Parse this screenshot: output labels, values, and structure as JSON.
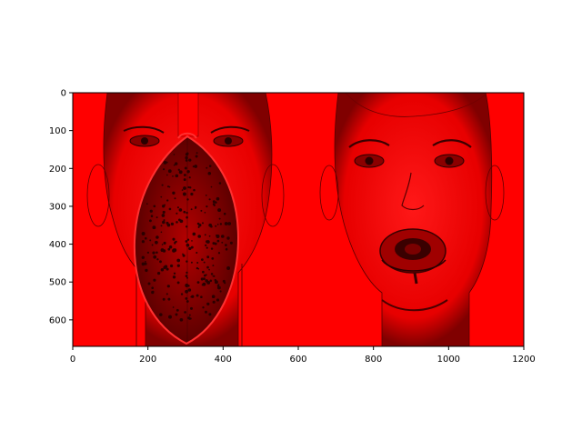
{
  "chart_data": {
    "type": "image",
    "title": "",
    "xlabel": "",
    "ylabel": "",
    "xlim": [
      0,
      1200
    ],
    "ylim": [
      670,
      0
    ],
    "x_ticks": [
      0,
      200,
      400,
      600,
      800,
      1000,
      1200
    ],
    "y_ticks": [
      0,
      100,
      200,
      300,
      400,
      500,
      600
    ],
    "image_content": "red-tinted photo of two faces: left face with dragon fruit half over mouth, right face with dragon fruit slice in mouth",
    "colors": {
      "background_tint": "#ff0000",
      "shadow": "#2a0000",
      "figure_bg": "#ffffff",
      "axis": "#000000"
    }
  }
}
